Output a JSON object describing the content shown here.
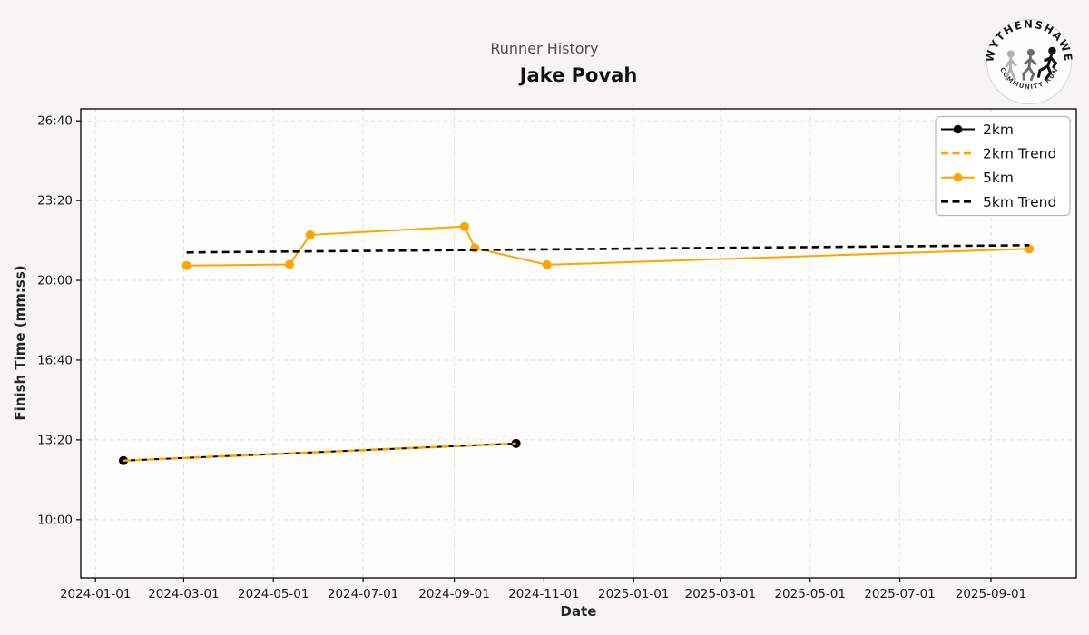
{
  "header": {
    "subtitle": "Runner History",
    "title": "Jake Povah"
  },
  "logo": {
    "top_text": "WYTHENSHAWE",
    "bottom_text": "COMMUNITY RUN"
  },
  "chart_data": {
    "type": "line",
    "title": "Jake Povah",
    "subtitle": "Runner History",
    "xlabel": "Date",
    "ylabel": "Finish Time (mm:ss)",
    "grid": true,
    "legend_position": "upper right",
    "xlim": [
      "2023-12-22",
      "2025-10-29"
    ],
    "ylim_seconds": [
      454,
      1630
    ],
    "xticks": [
      "2024-01-01",
      "2024-03-01",
      "2024-05-01",
      "2024-07-01",
      "2024-09-01",
      "2024-11-01",
      "2025-01-01",
      "2025-03-01",
      "2025-05-01",
      "2025-07-01",
      "2025-09-01"
    ],
    "yticks": [
      "10:00",
      "13:20",
      "16:40",
      "20:00",
      "23:20",
      "26:40"
    ],
    "colors": {
      "orange": "#FFA500",
      "black": "#000000",
      "grid": "#dedede"
    },
    "series": [
      {
        "name": "2km",
        "color": "#000000",
        "style": "solid",
        "marker": true,
        "points": [
          {
            "date": "2024-01-20",
            "time": "12:28"
          },
          {
            "date": "2024-10-13",
            "time": "13:11"
          }
        ]
      },
      {
        "name": "2km Trend",
        "color": "#FFA500",
        "style": "dashed",
        "marker": false,
        "points": [
          {
            "date": "2024-01-20",
            "time": "12:28"
          },
          {
            "date": "2024-10-13",
            "time": "13:11"
          }
        ]
      },
      {
        "name": "5km",
        "color": "#FFA500",
        "style": "solid",
        "marker": true,
        "points": [
          {
            "date": "2024-03-03",
            "time": "20:37"
          },
          {
            "date": "2024-05-12",
            "time": "20:40"
          },
          {
            "date": "2024-05-26",
            "time": "21:54"
          },
          {
            "date": "2024-09-08",
            "time": "22:15"
          },
          {
            "date": "2024-09-15",
            "time": "21:21"
          },
          {
            "date": "2024-11-03",
            "time": "20:39"
          },
          {
            "date": "2025-09-27",
            "time": "21:19"
          }
        ]
      },
      {
        "name": "5km Trend",
        "color": "#000000",
        "style": "dashed",
        "marker": false,
        "points": [
          {
            "date": "2024-03-03",
            "time": "21:10"
          },
          {
            "date": "2025-09-27",
            "time": "21:28"
          }
        ]
      }
    ]
  }
}
